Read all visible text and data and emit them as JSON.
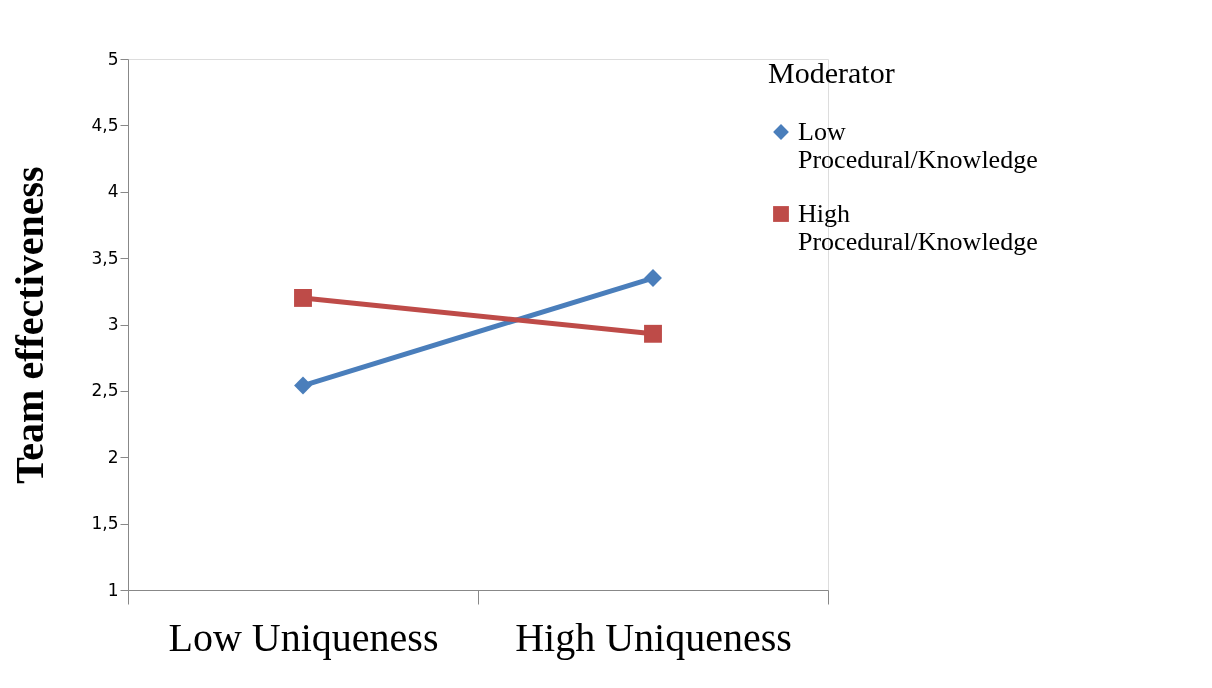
{
  "chart_data": {
    "type": "line",
    "ylabel": "Team effectiveness",
    "legend_title": "Moderator",
    "categories": [
      "Low Uniqueness",
      "High Uniqueness"
    ],
    "series": [
      {
        "name": "Low Procedural/Knowledge",
        "color": "#4a7ebb",
        "marker": "diamond",
        "values": [
          2.54,
          3.35
        ]
      },
      {
        "name": "High Procedural/Knowledge",
        "color": "#be4b48",
        "marker": "square",
        "values": [
          3.2,
          2.93
        ]
      }
    ],
    "ylim": [
      1,
      5
    ],
    "yticks": [
      1,
      {
        "value": 1.5,
        "label": "1,5"
      },
      2,
      {
        "value": 2.5,
        "label": "2,5"
      },
      3,
      {
        "value": 3.5,
        "label": "3,5"
      },
      4,
      {
        "value": 4.5,
        "label": "4,5"
      },
      5
    ],
    "grid": false,
    "legend": "right",
    "line_style": "solid"
  }
}
